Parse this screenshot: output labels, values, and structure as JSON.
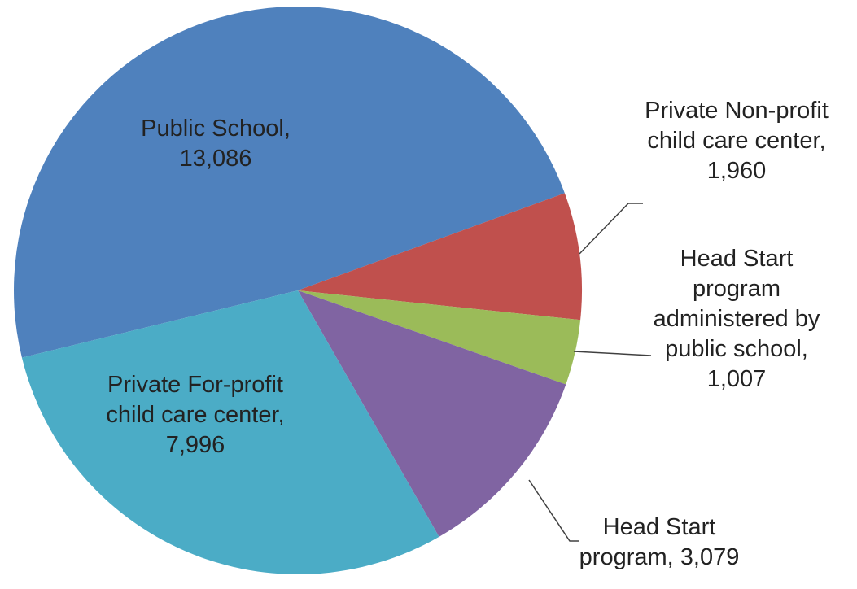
{
  "chart_data": {
    "type": "pie",
    "categories": [
      "Public School,",
      "Private Non-profit child care center,",
      "Head Start program administered by public school,",
      "Head Start program,",
      "Private For-profit child care center,"
    ],
    "values": [
      13086,
      1960,
      1007,
      3079,
      7996
    ],
    "value_labels": [
      "13,086",
      "1,960",
      "1,007",
      "3,079",
      "7,996"
    ],
    "colors": [
      "#4f81bd",
      "#c0504d",
      "#9bbb59",
      "#8064a2",
      "#4bacc6"
    ]
  }
}
